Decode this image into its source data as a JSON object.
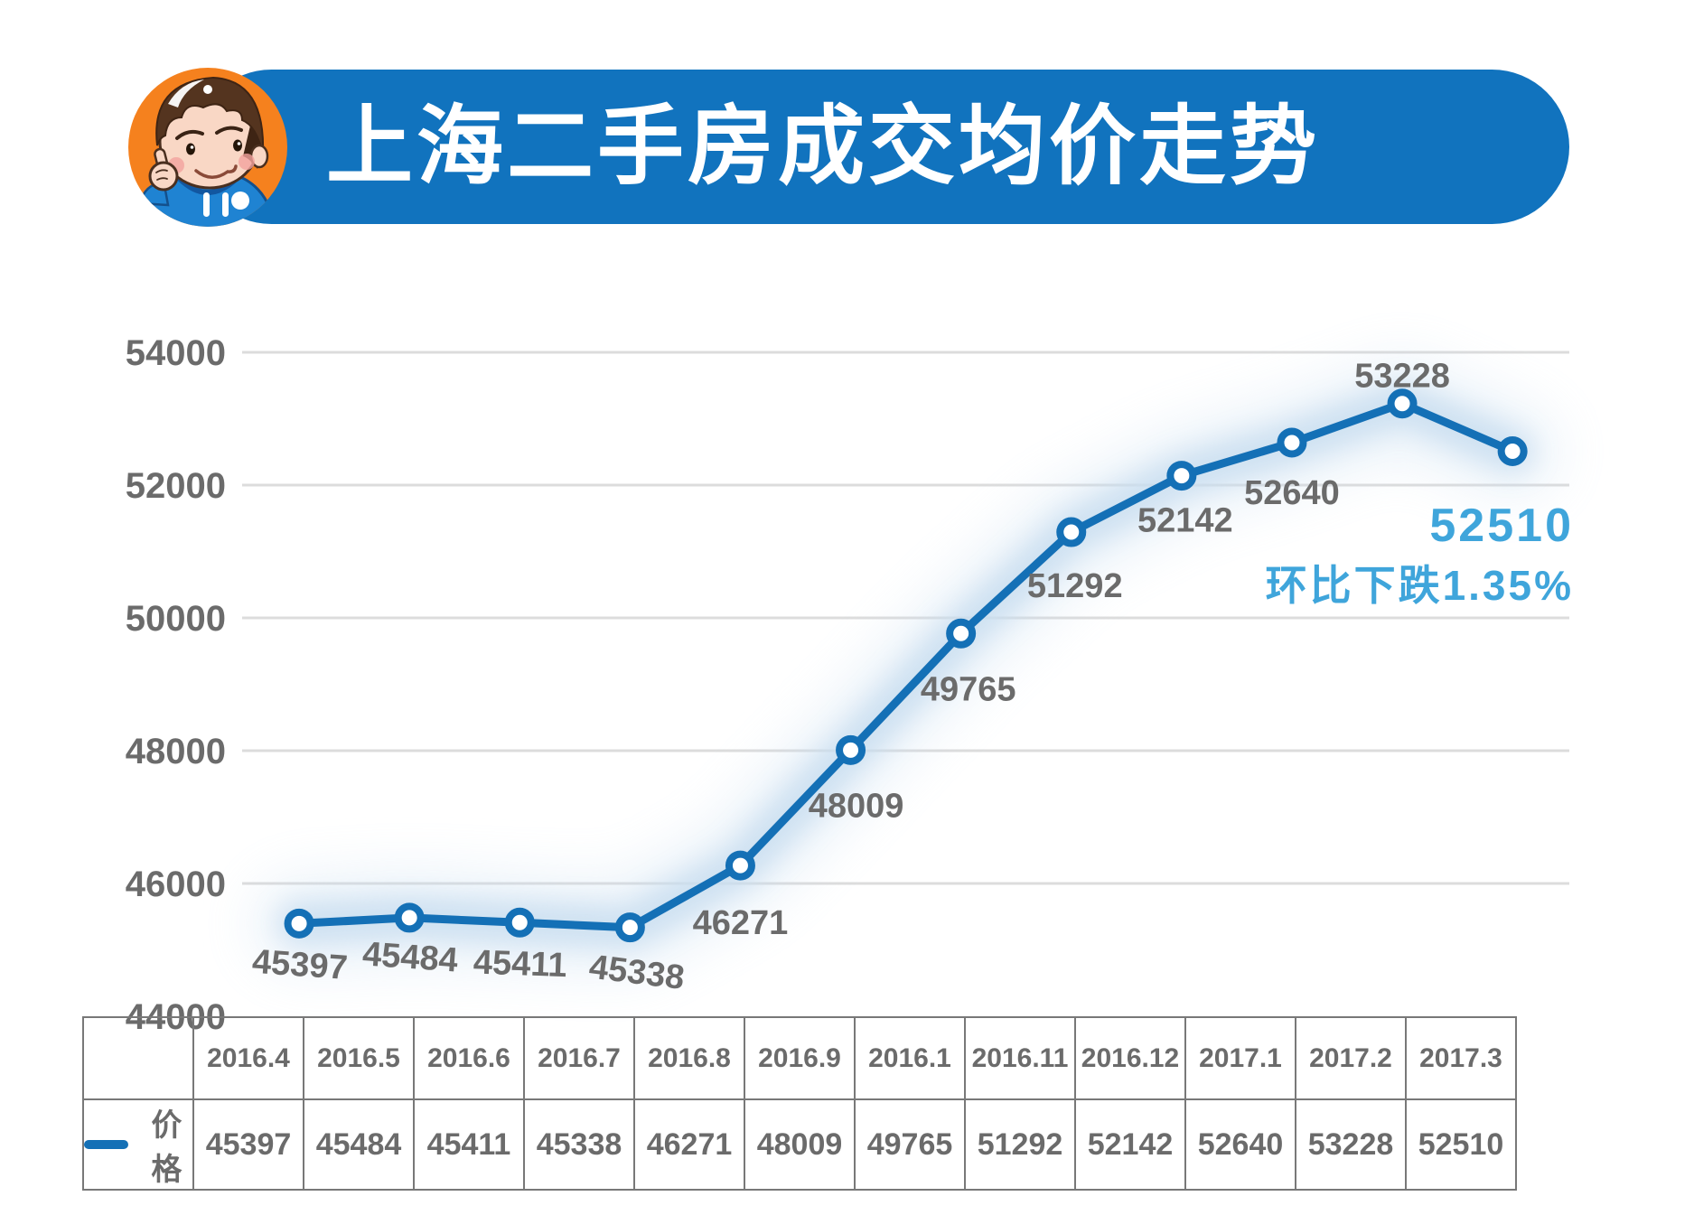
{
  "header": {
    "title": "上海二手房成交均价走势",
    "banner_color": "#1173BE",
    "avatar_bg": "#F5811E",
    "avatar_icon": "cartoon-boy-thumbs-up"
  },
  "legend": {
    "label": "价格"
  },
  "annotation": {
    "value": "52510",
    "note": "环比下跌1.35%",
    "color": "#3FA5DB"
  },
  "chart_data": {
    "type": "line",
    "title": "上海二手房成交均价走势",
    "categories": [
      "2016.4",
      "2016.5",
      "2016.6",
      "2016.7",
      "2016.8",
      "2016.9",
      "2016.1",
      "2016.11",
      "2016.12",
      "2017.1",
      "2017.2",
      "2017.3"
    ],
    "series": [
      {
        "name": "价格",
        "values": [
          45397,
          45484,
          45411,
          45338,
          46271,
          48009,
          49765,
          51292,
          52142,
          52640,
          53228,
          52510
        ]
      }
    ],
    "xlabel": "",
    "ylabel": "",
    "ylim": [
      44000,
      54000
    ],
    "y_ticks": [
      54000,
      52000,
      50000,
      48000,
      46000,
      44000
    ],
    "grid": true,
    "legend_position": "bottom-left",
    "marker": "open-circle",
    "label_layout": [
      [
        0,
        58,
        4
      ],
      [
        0,
        56,
        4
      ],
      [
        0,
        58,
        2
      ],
      [
        6,
        62,
        7
      ],
      [
        0,
        76,
        0
      ],
      [
        6,
        74,
        0
      ],
      [
        8,
        74,
        0
      ],
      [
        4,
        72,
        0
      ],
      [
        4,
        62,
        0
      ],
      [
        0,
        68,
        0
      ],
      [
        0,
        -18,
        0
      ],
      null
    ],
    "colors": {
      "line": "#1470B6",
      "glow": "#C9DEF0",
      "grid": "#DCDCDC",
      "text_gray": "#6B6B6B",
      "table_border": "#787878"
    }
  }
}
